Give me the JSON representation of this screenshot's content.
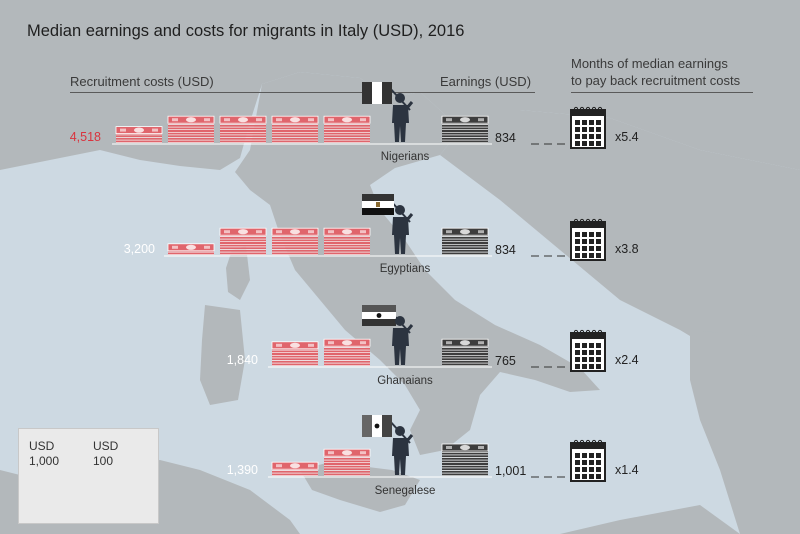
{
  "title": "Median earnings and costs for migrants in Italy (USD), 2016",
  "headers": {
    "recruitment": "Recruitment costs (USD)",
    "earnings": "Earnings (USD)",
    "months_line1": "Months of median earnings",
    "months_line2": "to pay back recruitment costs"
  },
  "colors": {
    "cost_bill": "#e0656c",
    "cost_highlight": "#d9343f",
    "earn_bill": "#3d3d3d",
    "land": "#b3b8bb",
    "sea": "#cdd9e2"
  },
  "rows": [
    {
      "nationality": "Nigerians",
      "cost_label": "4,518",
      "earnings_label": "834",
      "multiplier": "x5.4",
      "highlight": true
    },
    {
      "nationality": "Egyptians",
      "cost_label": "3,200",
      "earnings_label": "834",
      "multiplier": "x3.8",
      "highlight": false
    },
    {
      "nationality": "Ghanaians",
      "cost_label": "1,840",
      "earnings_label": "765",
      "multiplier": "x2.4",
      "highlight": false
    },
    {
      "nationality": "Senegalese",
      "cost_label": "1,390",
      "earnings_label": "1,001",
      "multiplier": "x1.4",
      "highlight": false
    }
  ],
  "legend": {
    "big_line1": "USD",
    "big_line2": "1,000",
    "small_line1": "USD",
    "small_line2": "100"
  },
  "chart_data": {
    "type": "table",
    "title": "Median earnings and costs for migrants in Italy (USD), 2016",
    "categories": [
      "Nigerians",
      "Egyptians",
      "Ghanaians",
      "Senegalese"
    ],
    "series": [
      {
        "name": "Recruitment costs (USD)",
        "values": [
          4518,
          3200,
          1840,
          1390
        ]
      },
      {
        "name": "Earnings (USD)",
        "values": [
          834,
          834,
          765,
          1001
        ]
      },
      {
        "name": "Months of median earnings to pay back recruitment costs",
        "values": [
          5.4,
          3.8,
          2.4,
          1.4
        ]
      }
    ],
    "units": {
      "big_stack": 1000,
      "small_stack": 100
    }
  }
}
